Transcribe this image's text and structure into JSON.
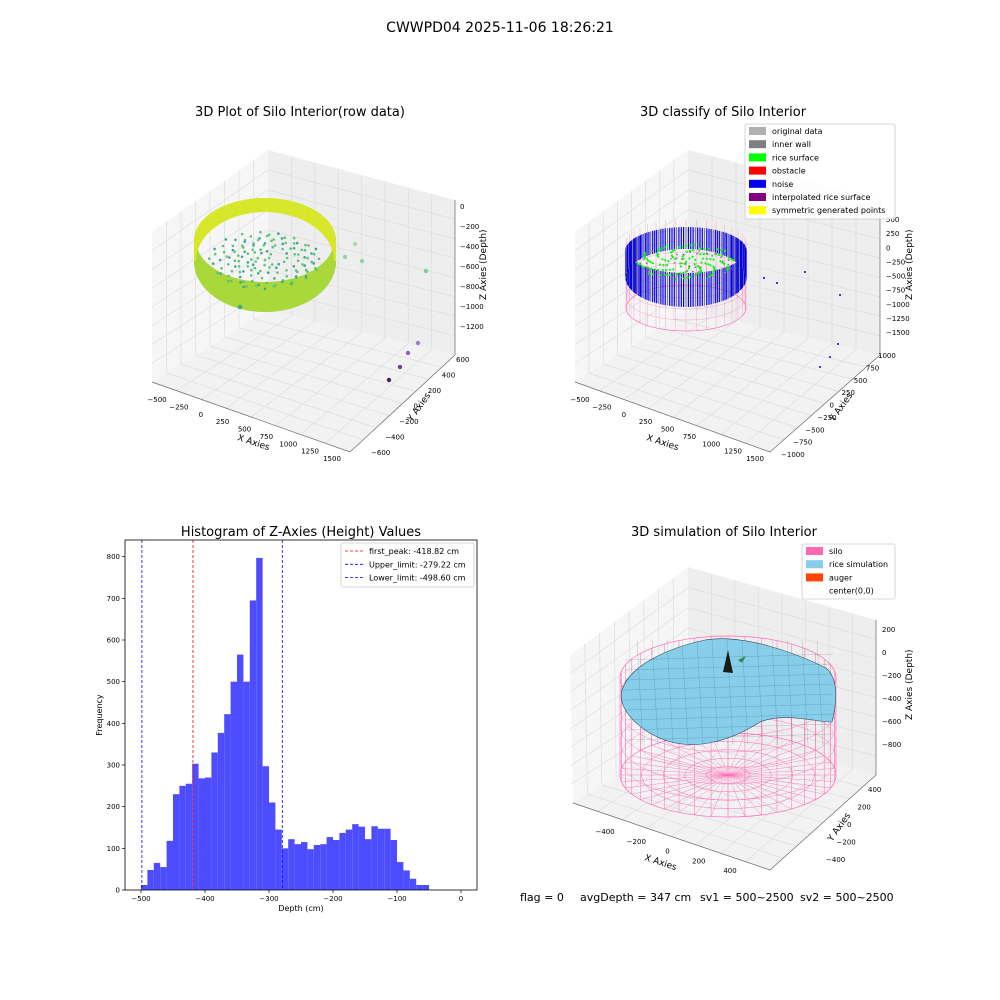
{
  "figure": {
    "suptitle": "CWWPD04 2025-11-06 18:26:21",
    "footer": {
      "flag": "flag = 0",
      "avg_depth": "avgDepth = 347 cm",
      "sv1": "sv1 = 500~2500",
      "sv2": "sv2 = 500~2500"
    }
  },
  "colors": {
    "hist_bar": "#4d4dff",
    "first_peak": "#ff0000",
    "limits": "#0000ff",
    "silo": "#ff69b4",
    "rice": "#87ceeb",
    "auger": "#ff4500",
    "noise": "#0000ee",
    "rice_surface": "#00ff00",
    "inner_wall": "#808080",
    "original": "#b0b0b0",
    "obstacle": "#ff0000",
    "interpolated": "#800080",
    "symmetric": "#ffff00"
  },
  "plot1": {
    "title": "3D Plot of Silo Interior(row data)",
    "xlabel": "X Axies",
    "ylabel": "Y Axies",
    "zlabel": "Z Axies (Depth)",
    "xticks": [
      "−500",
      "−250",
      "0",
      "250",
      "500",
      "750",
      "1000",
      "1250",
      "1500"
    ],
    "yticks": [
      "−600",
      "−400",
      "−200",
      "0",
      "200",
      "400",
      "600"
    ],
    "zticks": [
      "0",
      "−200",
      "−400",
      "−600",
      "−800",
      "−1000",
      "−1200"
    ]
  },
  "plot2": {
    "title": "3D classify of Silo Interior",
    "xlabel": "X Axies",
    "ylabel": "Y Axies",
    "zlabel": "Z Axies (Depth)",
    "xticks": [
      "−500",
      "−250",
      "0",
      "250",
      "500",
      "750",
      "1000",
      "1250",
      "1500"
    ],
    "yticks": [
      "−1000",
      "−750",
      "−500",
      "−250",
      "0",
      "250",
      "500",
      "750",
      "1000"
    ],
    "zticks": [
      "500",
      "250",
      "0",
      "−250",
      "−500",
      "−750",
      "−1000",
      "−1250",
      "−1500"
    ],
    "legend": [
      {
        "label": "original data",
        "color": "#b0b0b0"
      },
      {
        "label": "inner wall",
        "color": "#808080"
      },
      {
        "label": "rice surface",
        "color": "#00ff00"
      },
      {
        "label": "obstacle",
        "color": "#ff0000"
      },
      {
        "label": "noise",
        "color": "#0000ee"
      },
      {
        "label": "interpolated rice surface",
        "color": "#800080"
      },
      {
        "label": "symmetric generated points",
        "color": "#ffff00"
      }
    ]
  },
  "plot4": {
    "title": "3D simulation of Silo Interior",
    "xlabel": "X Axies",
    "ylabel": "Y Axies",
    "zlabel": "Z Axies (Depth)",
    "xticks": [
      "−400",
      "−200",
      "0",
      "200",
      "400"
    ],
    "yticks": [
      "−400",
      "−200",
      "0",
      "200",
      "400"
    ],
    "zticks": [
      "200",
      "0",
      "−200",
      "−400",
      "−600",
      "−800"
    ],
    "legend": [
      {
        "label": "silo",
        "color": "#ff69b4"
      },
      {
        "label": "rice simulation",
        "color": "#87ceeb"
      },
      {
        "label": "auger",
        "color": "#ff4500"
      },
      {
        "label": "center(0,0)",
        "color": ""
      }
    ]
  },
  "chart_data": {
    "type": "bar",
    "title": "Histogram of Z-Axies (Height) Values",
    "xlabel": "Depth (cm)",
    "ylabel": "Frequency",
    "xlim": [
      -525,
      25
    ],
    "ylim": [
      0,
      840
    ],
    "xticks": [
      -500,
      -400,
      -300,
      -200,
      -100,
      0
    ],
    "xtick_labels": [
      "−500",
      "−400",
      "−300",
      "−200",
      "−100",
      "0"
    ],
    "yticks": [
      0,
      100,
      200,
      300,
      400,
      500,
      600,
      700,
      800
    ],
    "bin_start": -500,
    "bin_width": 10,
    "values": [
      12,
      48,
      65,
      55,
      118,
      230,
      250,
      255,
      303,
      268,
      270,
      330,
      377,
      422,
      500,
      565,
      500,
      695,
      797,
      297,
      210,
      145,
      100,
      122,
      110,
      115,
      98,
      108,
      110,
      127,
      120,
      137,
      145,
      158,
      152,
      122,
      153,
      147,
      147,
      120,
      67,
      47,
      27,
      12,
      12
    ],
    "lines": [
      {
        "label": "first_peak: -418.82 cm",
        "x": -418.82,
        "color": "#ff0000"
      },
      {
        "label": "Upper_limit: -279.22 cm",
        "x": -279.22,
        "color": "#0000ff"
      },
      {
        "label": "Lower_limit: -498.60 cm",
        "x": -498.6,
        "color": "#0000ff"
      }
    ],
    "grid": false,
    "legend_position": "top-right"
  }
}
